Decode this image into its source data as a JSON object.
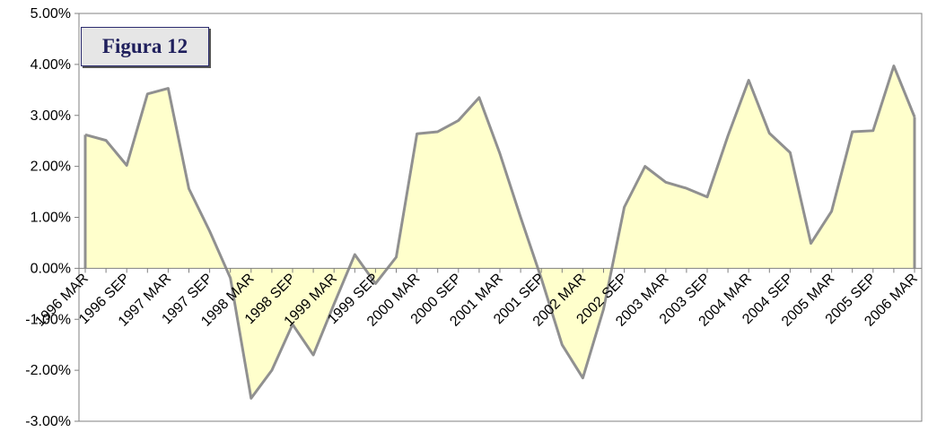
{
  "chart_data": {
    "type": "area",
    "title": "Figura 12",
    "xlabel": "",
    "ylabel": "",
    "ylim": [
      -0.03,
      0.05
    ],
    "yticks": [
      {
        "value": 0.05,
        "label": "5.00%"
      },
      {
        "value": 0.04,
        "label": "4.00%"
      },
      {
        "value": 0.03,
        "label": "3.00%"
      },
      {
        "value": 0.02,
        "label": "2.00%"
      },
      {
        "value": 0.01,
        "label": "1.00%"
      },
      {
        "value": 0.0,
        "label": "0.00%"
      },
      {
        "value": -0.01,
        "label": "-1.00%"
      },
      {
        "value": -0.02,
        "label": "-2.00%"
      },
      {
        "value": -0.03,
        "label": "-3.00%"
      }
    ],
    "x_tick_labels": [
      "1996 MAR",
      "1996 SEP",
      "1997 MAR",
      "1997 SEP",
      "1998 MAR",
      "1998 SEP",
      "1999 MAR",
      "1999 SEP",
      "2000 MAR",
      "2000 SEP",
      "2001 MAR",
      "2001 SEP",
      "2002 MAR",
      "2002 SEP",
      "2003 MAR",
      "2003 SEP",
      "2004 MAR",
      "2004 SEP",
      "2005 MAR",
      "2005 SEP",
      "2006 MAR"
    ],
    "x": [
      "1996 MAR",
      "1996 JUN",
      "1996 SEP",
      "1996 DEC",
      "1997 MAR",
      "1997 JUN",
      "1997 SEP",
      "1997 DEC",
      "1998 MAR",
      "1998 JUN",
      "1998 SEP",
      "1998 DEC",
      "1999 MAR",
      "1999 JUN",
      "1999 SEP",
      "1999 DEC",
      "2000 MAR",
      "2000 JUN",
      "2000 SEP",
      "2000 DEC",
      "2001 MAR",
      "2001 JUN",
      "2001 SEP",
      "2001 DEC",
      "2002 MAR",
      "2002 JUN",
      "2002 SEP",
      "2002 DEC",
      "2003 MAR",
      "2003 JUN",
      "2003 SEP",
      "2003 DEC",
      "2004 MAR",
      "2004 JUN",
      "2004 SEP",
      "2004 DEC",
      "2005 MAR",
      "2005 JUN",
      "2005 SEP",
      "2005 DEC",
      "2006 MAR"
    ],
    "values": [
      0.0262,
      0.0251,
      0.0202,
      0.0342,
      0.0353,
      0.0156,
      0.0073,
      -0.0019,
      -0.0255,
      -0.02,
      -0.011,
      -0.017,
      -0.007,
      0.0027,
      -0.003,
      0.0022,
      0.0264,
      0.0268,
      0.029,
      0.0335,
      0.0225,
      0.01,
      -0.002,
      -0.015,
      -0.0215,
      -0.008,
      0.012,
      0.02,
      0.0169,
      0.0157,
      0.014,
      0.026,
      0.0369,
      0.0265,
      0.0227,
      0.0049,
      0.0112,
      0.0268,
      0.027,
      0.0397,
      0.0297
    ],
    "grid": false,
    "legend": "none",
    "colors": {
      "fill": "#ffffcc",
      "line": "#909090",
      "axis": "#808080",
      "title_text": "#1f1f5c",
      "title_bg": "#e6e6e6"
    }
  }
}
